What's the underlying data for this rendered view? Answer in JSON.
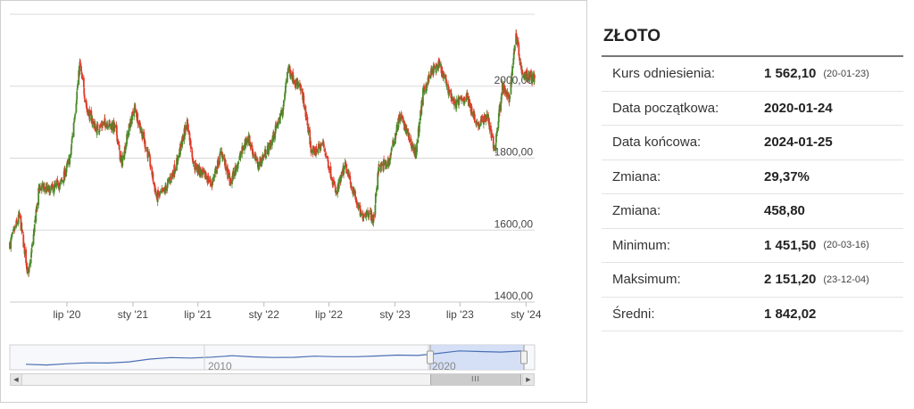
{
  "info": {
    "title": "ZŁOTO",
    "rows": [
      {
        "label": "Kurs odniesienia:",
        "value": "1 562,10",
        "date": "(20-01-23)"
      },
      {
        "label": "Data początkowa:",
        "value": "2020-01-24",
        "date": ""
      },
      {
        "label": "Data końcowa:",
        "value": "2024-01-25",
        "date": ""
      },
      {
        "label": "Zmiana:",
        "value": "29,37%",
        "date": ""
      },
      {
        "label": "Zmiana:",
        "value": "458,80",
        "date": ""
      },
      {
        "label": "Minimum:",
        "value": "1 451,50",
        "date": "(20-03-16)"
      },
      {
        "label": "Maksimum:",
        "value": "2 151,20",
        "date": "(23-12-04)"
      },
      {
        "label": "Średni:",
        "value": "1 842,02",
        "date": ""
      }
    ]
  },
  "colors": {
    "up": "#4a8a2a",
    "down": "#e03a2a",
    "navigator_line": "#4a6fb5",
    "navigator_selection": "#cfdcf5"
  },
  "chart_data": {
    "type": "candlestick",
    "title": "",
    "xlabel": "",
    "ylabel": "",
    "ylim": [
      1400,
      2200
    ],
    "yticks": [
      1400,
      1600,
      1800,
      2000
    ],
    "ytick_labels": [
      "1400,00",
      "1600,00",
      "1800,00",
      "2000,00"
    ],
    "x_range": [
      "2020-01-24",
      "2024-01-25"
    ],
    "xticks": [
      {
        "date": "2020-07-01",
        "label": "lip '20"
      },
      {
        "date": "2021-01-01",
        "label": "sty '21"
      },
      {
        "date": "2021-07-01",
        "label": "lip '21"
      },
      {
        "date": "2022-01-01",
        "label": "sty '22"
      },
      {
        "date": "2022-07-01",
        "label": "lip '22"
      },
      {
        "date": "2023-01-01",
        "label": "sty '23"
      },
      {
        "date": "2023-07-01",
        "label": "lip '23"
      },
      {
        "date": "2024-01-01",
        "label": "sty '24"
      }
    ],
    "approx_close_path": [
      [
        "2020-01-24",
        1562
      ],
      [
        "2020-02-20",
        1640
      ],
      [
        "2020-03-16",
        1470
      ],
      [
        "2020-04-15",
        1720
      ],
      [
        "2020-05-15",
        1710
      ],
      [
        "2020-06-15",
        1730
      ],
      [
        "2020-07-10",
        1800
      ],
      [
        "2020-08-06",
        2060
      ],
      [
        "2020-08-25",
        1940
      ],
      [
        "2020-09-20",
        1880
      ],
      [
        "2020-10-20",
        1900
      ],
      [
        "2020-11-15",
        1880
      ],
      [
        "2020-11-30",
        1780
      ],
      [
        "2020-12-20",
        1880
      ],
      [
        "2021-01-06",
        1940
      ],
      [
        "2021-02-15",
        1800
      ],
      [
        "2021-03-08",
        1690
      ],
      [
        "2021-03-31",
        1710
      ],
      [
        "2021-05-01",
        1780
      ],
      [
        "2021-06-01",
        1900
      ],
      [
        "2021-06-20",
        1780
      ],
      [
        "2021-08-09",
        1730
      ],
      [
        "2021-09-05",
        1820
      ],
      [
        "2021-09-29",
        1730
      ],
      [
        "2021-11-16",
        1860
      ],
      [
        "2021-12-15",
        1780
      ],
      [
        "2022-01-20",
        1840
      ],
      [
        "2022-02-24",
        1940
      ],
      [
        "2022-03-08",
        2050
      ],
      [
        "2022-04-18",
        1980
      ],
      [
        "2022-05-15",
        1810
      ],
      [
        "2022-06-15",
        1840
      ],
      [
        "2022-07-21",
        1700
      ],
      [
        "2022-08-15",
        1780
      ],
      [
        "2022-09-28",
        1640
      ],
      [
        "2022-10-20",
        1650
      ],
      [
        "2022-11-03",
        1630
      ],
      [
        "2022-11-15",
        1770
      ],
      [
        "2022-12-15",
        1790
      ],
      [
        "2023-01-15",
        1920
      ],
      [
        "2023-02-28",
        1810
      ],
      [
        "2023-03-20",
        1980
      ],
      [
        "2023-04-13",
        2040
      ],
      [
        "2023-05-04",
        2060
      ],
      [
        "2023-06-15",
        1950
      ],
      [
        "2023-07-20",
        1970
      ],
      [
        "2023-08-20",
        1890
      ],
      [
        "2023-09-15",
        1920
      ],
      [
        "2023-10-05",
        1820
      ],
      [
        "2023-10-27",
        2000
      ],
      [
        "2023-11-15",
        1960
      ],
      [
        "2023-12-04",
        2151
      ],
      [
        "2023-12-20",
        2040
      ],
      [
        "2024-01-10",
        2030
      ],
      [
        "2024-01-25",
        2020
      ]
    ],
    "navigator": {
      "labels": [
        "2010",
        "2020"
      ],
      "selection": [
        "2020-01-24",
        "2024-01-25"
      ]
    }
  }
}
